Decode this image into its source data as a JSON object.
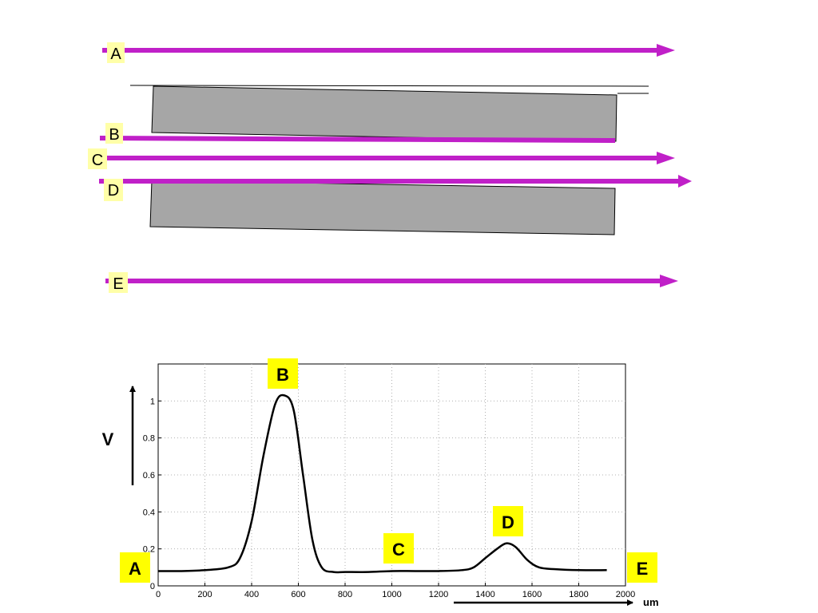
{
  "colors": {
    "beam": "#c020c8",
    "label_bg_light": "#ffffa8",
    "label_bg_bright": "#ffff00",
    "block": "#a6a6a6",
    "grid": "#b0b0b0"
  },
  "beams": [
    {
      "label": "A"
    },
    {
      "label": "B"
    },
    {
      "label": "C"
    },
    {
      "label": "D"
    },
    {
      "label": "E"
    }
  ],
  "plot_labels": {
    "A": "A",
    "B": "B",
    "C": "C",
    "D": "D",
    "E": "E"
  },
  "axis": {
    "y_symbol": "V",
    "x_unit": "um"
  },
  "chart_data": {
    "type": "line",
    "xlim": [
      0,
      2000
    ],
    "ylim": [
      0,
      1.2
    ],
    "x_ticks": [
      0,
      200,
      400,
      600,
      800,
      1000,
      1200,
      1400,
      1600,
      1800,
      2000
    ],
    "y_ticks": [
      0,
      0.2,
      0.4,
      0.6,
      0.8,
      1
    ],
    "grid": true,
    "series": [
      {
        "x": [
          0,
          100,
          200,
          300,
          350,
          400,
          450,
          500,
          540,
          580,
          620,
          660,
          700,
          750,
          800,
          900,
          1000,
          1100,
          1200,
          1300,
          1350,
          1400,
          1450,
          1490,
          1530,
          1580,
          1630,
          1700,
          1800,
          1920
        ],
        "y": [
          0.08,
          0.08,
          0.085,
          0.1,
          0.15,
          0.35,
          0.7,
          0.98,
          1.03,
          0.95,
          0.6,
          0.25,
          0.1,
          0.075,
          0.075,
          0.075,
          0.08,
          0.08,
          0.08,
          0.085,
          0.1,
          0.15,
          0.2,
          0.23,
          0.21,
          0.14,
          0.1,
          0.09,
          0.085,
          0.085
        ]
      }
    ]
  }
}
